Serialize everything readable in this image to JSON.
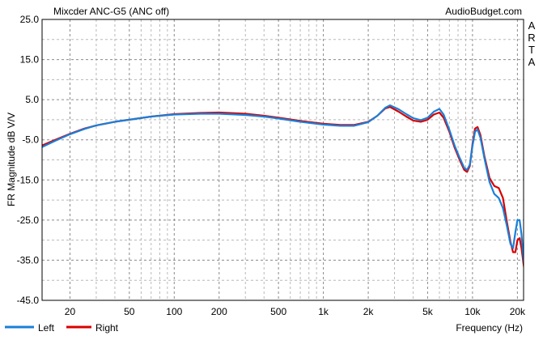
{
  "chart_data": {
    "type": "line",
    "title": "Mixcder ANC-G5 (ANC off)",
    "source": "AudioBudget.com",
    "side_label": "ARTA",
    "xlabel": "Frequency (Hz)",
    "ylabel": "FR Magnitude dB V/V",
    "x_scale": "log",
    "xlim": [
      13,
      22000
    ],
    "ylim": [
      -45,
      25
    ],
    "x_ticks": [
      {
        "value": 20,
        "label": "20"
      },
      {
        "value": 50,
        "label": "50"
      },
      {
        "value": 100,
        "label": "100"
      },
      {
        "value": 200,
        "label": "200"
      },
      {
        "value": 500,
        "label": "500"
      },
      {
        "value": 1000,
        "label": "1k"
      },
      {
        "value": 2000,
        "label": "2k"
      },
      {
        "value": 5000,
        "label": "5k"
      },
      {
        "value": 10000,
        "label": "10k"
      },
      {
        "value": 20000,
        "label": "20k"
      }
    ],
    "y_ticks": [
      {
        "value": 25,
        "label": "25.0"
      },
      {
        "value": 15,
        "label": "15.0"
      },
      {
        "value": 5,
        "label": "5.0"
      },
      {
        "value": -5,
        "label": "-5.0"
      },
      {
        "value": -15,
        "label": "-15.0"
      },
      {
        "value": -25,
        "label": "-25.0"
      },
      {
        "value": -35,
        "label": "-35.0"
      },
      {
        "value": -45,
        "label": "-45.0"
      }
    ],
    "grid": true,
    "legend_position": "bottom-left",
    "series": [
      {
        "name": "Left",
        "color": "#1a7fd9",
        "points": [
          [
            13,
            -6.8
          ],
          [
            16,
            -5.2
          ],
          [
            20,
            -3.6
          ],
          [
            25,
            -2.3
          ],
          [
            30,
            -1.4
          ],
          [
            40,
            -0.5
          ],
          [
            50,
            0
          ],
          [
            70,
            0.8
          ],
          [
            100,
            1.3
          ],
          [
            150,
            1.5
          ],
          [
            200,
            1.5
          ],
          [
            300,
            1.2
          ],
          [
            400,
            0.8
          ],
          [
            500,
            0.3
          ],
          [
            700,
            -0.5
          ],
          [
            1000,
            -1.2
          ],
          [
            1300,
            -1.5
          ],
          [
            1600,
            -1.5
          ],
          [
            2000,
            -0.6
          ],
          [
            2300,
            1.0
          ],
          [
            2600,
            3.0
          ],
          [
            2800,
            3.6
          ],
          [
            3200,
            2.6
          ],
          [
            3600,
            1.4
          ],
          [
            4000,
            0.4
          ],
          [
            4500,
            -0.1
          ],
          [
            5000,
            0.5
          ],
          [
            5500,
            2.0
          ],
          [
            6000,
            2.7
          ],
          [
            6400,
            1.3
          ],
          [
            7000,
            -2.5
          ],
          [
            7600,
            -6.5
          ],
          [
            8200,
            -9.5
          ],
          [
            8800,
            -12.0
          ],
          [
            9200,
            -12.5
          ],
          [
            9600,
            -11.2
          ],
          [
            10000,
            -6.5
          ],
          [
            10400,
            -3.0
          ],
          [
            10800,
            -2.4
          ],
          [
            11300,
            -4.5
          ],
          [
            12000,
            -9.5
          ],
          [
            13000,
            -15.5
          ],
          [
            14000,
            -18.5
          ],
          [
            15000,
            -19.5
          ],
          [
            16000,
            -22.0
          ],
          [
            17000,
            -26.5
          ],
          [
            18000,
            -31.0
          ],
          [
            18700,
            -32.0
          ],
          [
            19400,
            -28.0
          ],
          [
            20000,
            -25.0
          ],
          [
            20700,
            -25.0
          ],
          [
            21300,
            -28.5
          ],
          [
            22000,
            -35.0
          ],
          [
            23000,
            -40.0
          ],
          [
            24000,
            -45.0
          ]
        ]
      },
      {
        "name": "Right",
        "color": "#d90000",
        "points": [
          [
            13,
            -6.4
          ],
          [
            16,
            -5.0
          ],
          [
            20,
            -3.5
          ],
          [
            25,
            -2.2
          ],
          [
            30,
            -1.4
          ],
          [
            40,
            -0.5
          ],
          [
            50,
            0
          ],
          [
            70,
            0.8
          ],
          [
            100,
            1.4
          ],
          [
            150,
            1.7
          ],
          [
            200,
            1.8
          ],
          [
            300,
            1.5
          ],
          [
            400,
            1.0
          ],
          [
            500,
            0.5
          ],
          [
            700,
            -0.3
          ],
          [
            1000,
            -1.0
          ],
          [
            1300,
            -1.3
          ],
          [
            1600,
            -1.3
          ],
          [
            2000,
            -0.5
          ],
          [
            2300,
            1.0
          ],
          [
            2600,
            2.8
          ],
          [
            2800,
            3.2
          ],
          [
            3200,
            2.0
          ],
          [
            3600,
            0.8
          ],
          [
            4000,
            -0.2
          ],
          [
            4500,
            -0.5
          ],
          [
            5000,
            0
          ],
          [
            5500,
            1.3
          ],
          [
            6000,
            1.8
          ],
          [
            6400,
            0.5
          ],
          [
            7000,
            -3.0
          ],
          [
            7600,
            -7.0
          ],
          [
            8200,
            -10.0
          ],
          [
            8800,
            -12.5
          ],
          [
            9200,
            -13.0
          ],
          [
            9600,
            -11.5
          ],
          [
            10000,
            -6.0
          ],
          [
            10400,
            -2.2
          ],
          [
            10800,
            -1.8
          ],
          [
            11300,
            -3.8
          ],
          [
            12000,
            -9.0
          ],
          [
            13000,
            -14.5
          ],
          [
            14000,
            -16.5
          ],
          [
            15000,
            -17.0
          ],
          [
            16000,
            -19.5
          ],
          [
            17000,
            -25.5
          ],
          [
            18000,
            -30.5
          ],
          [
            18700,
            -33.0
          ],
          [
            19400,
            -33.0
          ],
          [
            20000,
            -30.0
          ],
          [
            20700,
            -29.5
          ],
          [
            21300,
            -32.0
          ],
          [
            22000,
            -36.0
          ],
          [
            23000,
            -41.0
          ],
          [
            24000,
            -45.0
          ]
        ]
      }
    ]
  }
}
